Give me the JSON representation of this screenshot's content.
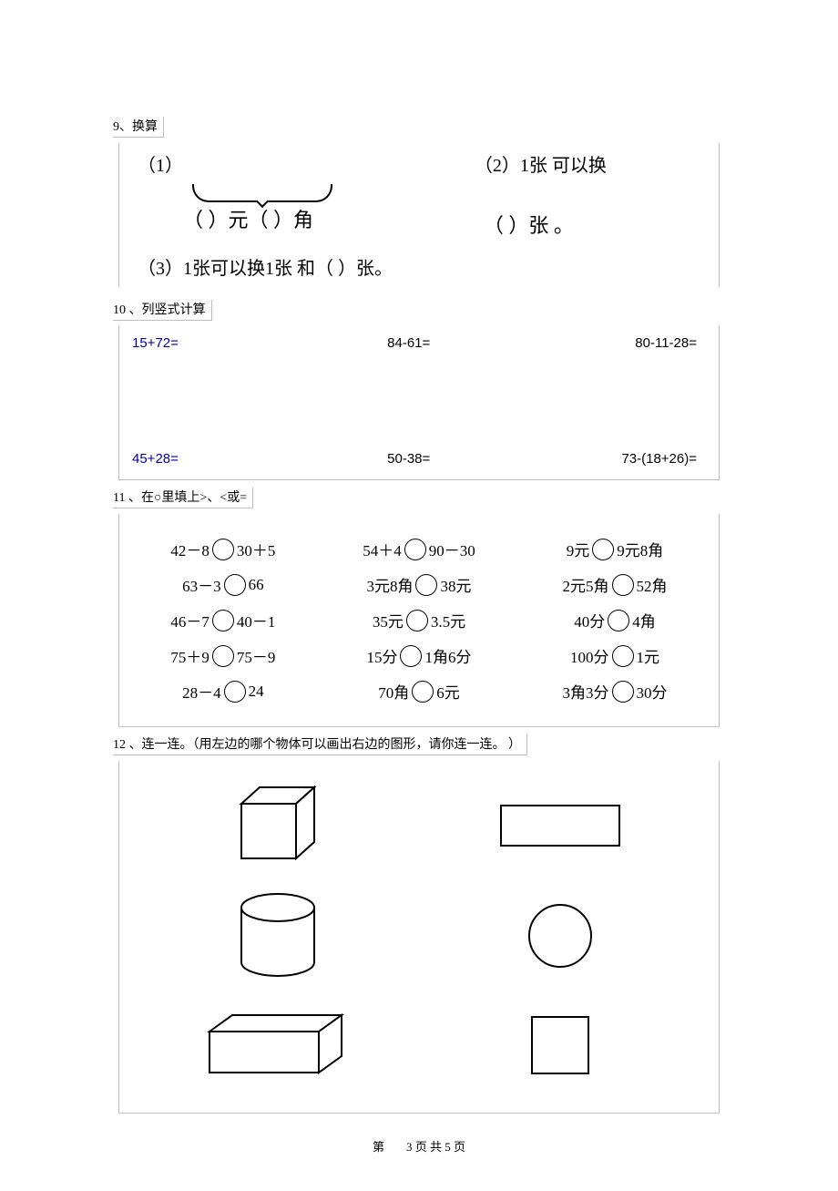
{
  "q9": {
    "head": "9、换算",
    "p1_label": "（1）",
    "p1_fill": "（   ）元（   ）角",
    "p2_label": "（2）1张   可以换",
    "p2_fill": "（     ）张  。",
    "p3": "（3）1张可以换1张 和（    ）张。"
  },
  "q10": {
    "head": "10 、列竖式计算",
    "rows": [
      [
        "15+72=",
        "84-61=",
        "80-11-28="
      ],
      [
        "45+28=",
        "50-38=",
        "73-(18+26)="
      ]
    ]
  },
  "q11": {
    "head": "11 、在○里填上>、<或=",
    "rows": [
      [
        [
          "42－8",
          "30＋5"
        ],
        [
          "54＋4",
          "90－30"
        ],
        [
          "9元",
          "9元8角"
        ]
      ],
      [
        [
          "63－3",
          "66"
        ],
        [
          "3元8角",
          "38元"
        ],
        [
          "2元5角",
          "52角"
        ]
      ],
      [
        [
          "46－7",
          "40－1"
        ],
        [
          "35元",
          "3.5元"
        ],
        [
          "40分",
          "4角"
        ]
      ],
      [
        [
          "75＋9",
          "75－9"
        ],
        [
          "15分",
          "1角6分"
        ],
        [
          "100分",
          "1元"
        ]
      ],
      [
        [
          "28－4",
          "24"
        ],
        [
          "70角",
          "6元"
        ],
        [
          "3角3分",
          "30分"
        ]
      ]
    ]
  },
  "q12": {
    "head": "12 、连一连。（用左边的哪个物体可以画出右边的图形，请你连一连。        ）"
  },
  "footer": {
    "left": "第",
    "page": "3",
    "right": "页 共",
    "total": "5",
    "tail": "页"
  },
  "colors": {
    "border": "#bfbfbf",
    "text": "#000000",
    "blue": "#0000a0",
    "bg": "#ffffff"
  }
}
